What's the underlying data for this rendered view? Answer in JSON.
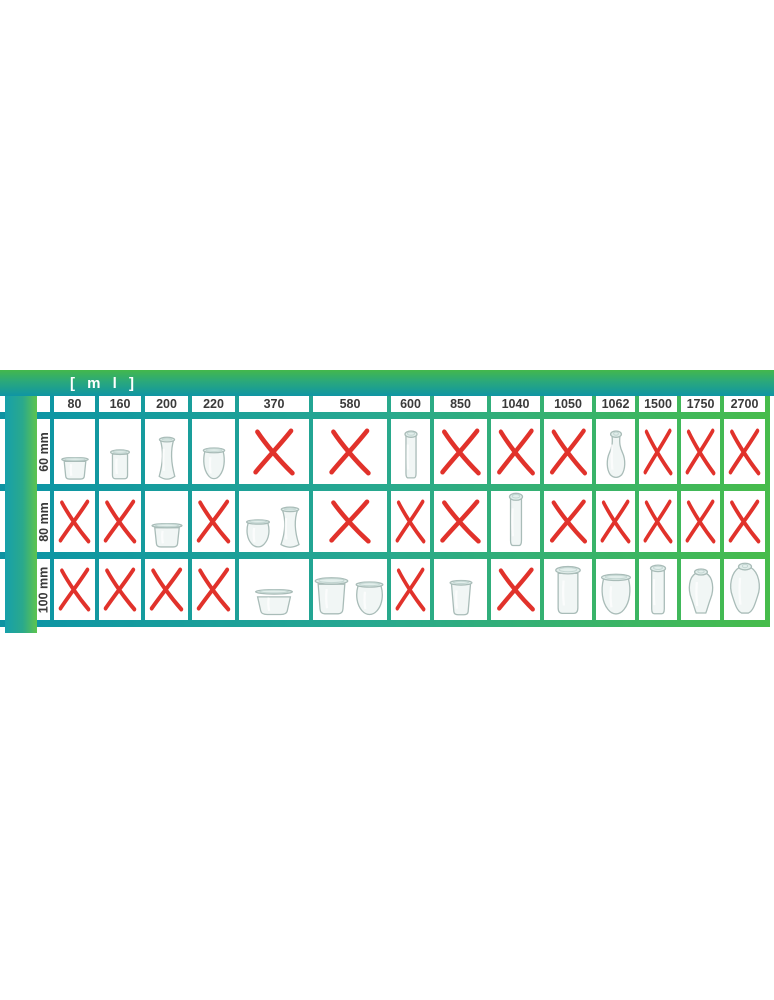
{
  "title": {
    "unit_label": "[ m l ]"
  },
  "colors": {
    "teal": "#0f95a4",
    "green": "#44bb4b",
    "cross_red": "#e1322b",
    "glass_stroke": "#a9bcb8",
    "glass_fill": "#eff5f4",
    "lid_fill": "#e2eeeb",
    "header_text": "#3a3a3a",
    "unit_text": "#ffffff"
  },
  "chart_data": {
    "type": "table",
    "title": "[ m l ]",
    "columns_unit": "ml",
    "rows_unit": "mm (diameter)",
    "columns": [
      "80",
      "160",
      "200",
      "220",
      "370",
      "580",
      "600",
      "850",
      "1040",
      "1050",
      "1062",
      "1500",
      "1750",
      "2700"
    ],
    "rows": [
      {
        "label": "60 mm",
        "cells": [
          "jar:mold-s",
          "jar:straight-s",
          "jar:hourglass-s",
          "jar:cup-s",
          "x",
          "x",
          "jar:cylinder-m",
          "x",
          "x",
          "x",
          "jar:bottle",
          "x",
          "x",
          "x"
        ]
      },
      {
        "label": "80 mm",
        "cells": [
          "x",
          "x",
          "jar:mold-w",
          "x",
          "jar:cup-m+hourglass-m",
          "x",
          "x",
          "x",
          "jar:cylinder-l",
          "x",
          "x",
          "x",
          "x",
          "x"
        ]
      },
      {
        "label": "100 mm",
        "cells": [
          "x",
          "x",
          "x",
          "x",
          "jar:bowl",
          "jar:mold-l+cup-l",
          "x",
          "jar:tumbler",
          "x",
          "jar:tall-straight",
          "jar:cup-xl",
          "jar:cylinder-xl",
          "jar:tulip",
          "jar:bulb"
        ]
      }
    ],
    "legend": {
      "x": "size not available",
      "jar:*": "jar shape available in this volume/diameter combination"
    }
  }
}
